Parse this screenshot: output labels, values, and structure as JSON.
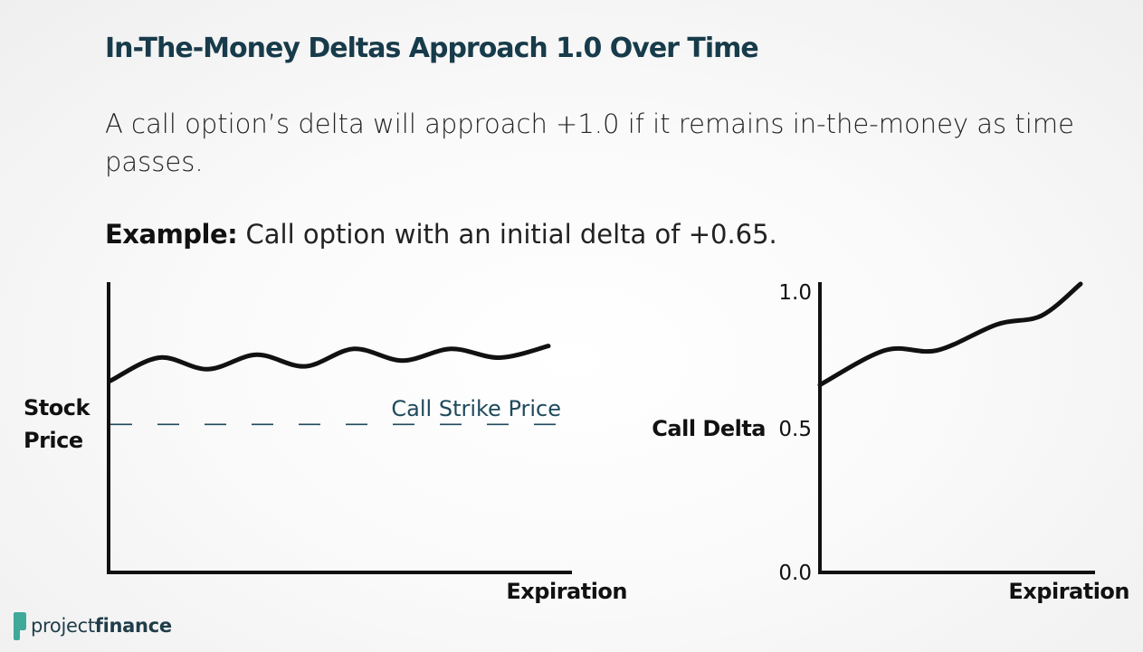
{
  "slide": {
    "title": "In-The-Money Deltas Approach 1.0 Over Time",
    "body": "A call option’s delta will approach +1.0 if it remains in-the-money as time passes.",
    "example_label": "Example:",
    "example_text": " Call option with an initial delta of +0.65."
  },
  "brand": {
    "logo_part1": "project",
    "logo_part2": "finance",
    "accent": "#173b4a",
    "mark_color": "#3fa99a"
  },
  "chart_data": [
    {
      "type": "line",
      "ylabel_line1": "Stock",
      "ylabel_line2": "Price",
      "xlabel": "Expiration",
      "reference_line_label": "Call Strike Price",
      "series": [
        {
          "values": [
            0.66,
            0.74,
            0.7,
            0.75,
            0.71,
            0.77,
            0.73,
            0.77,
            0.74,
            0.78
          ]
        }
      ],
      "reference_level": 0.51,
      "ylim": [
        0,
        1
      ],
      "grid": false,
      "line_color": "#111111",
      "reference_color": "#1f4a5c"
    },
    {
      "type": "line",
      "ylabel": "Call Delta",
      "xlabel": "Expiration",
      "y_ticks": [
        "1.0",
        "0.5",
        "0.0"
      ],
      "y_tick_values": [
        1.0,
        0.5,
        0.0
      ],
      "ylim": [
        0,
        1
      ],
      "grid": false,
      "line_color": "#111111",
      "series": [
        {
          "x": [
            0,
            0.25,
            0.45,
            0.68,
            0.85,
            1.0
          ],
          "values": [
            0.65,
            0.77,
            0.77,
            0.86,
            0.89,
            1.0
          ]
        }
      ]
    }
  ]
}
